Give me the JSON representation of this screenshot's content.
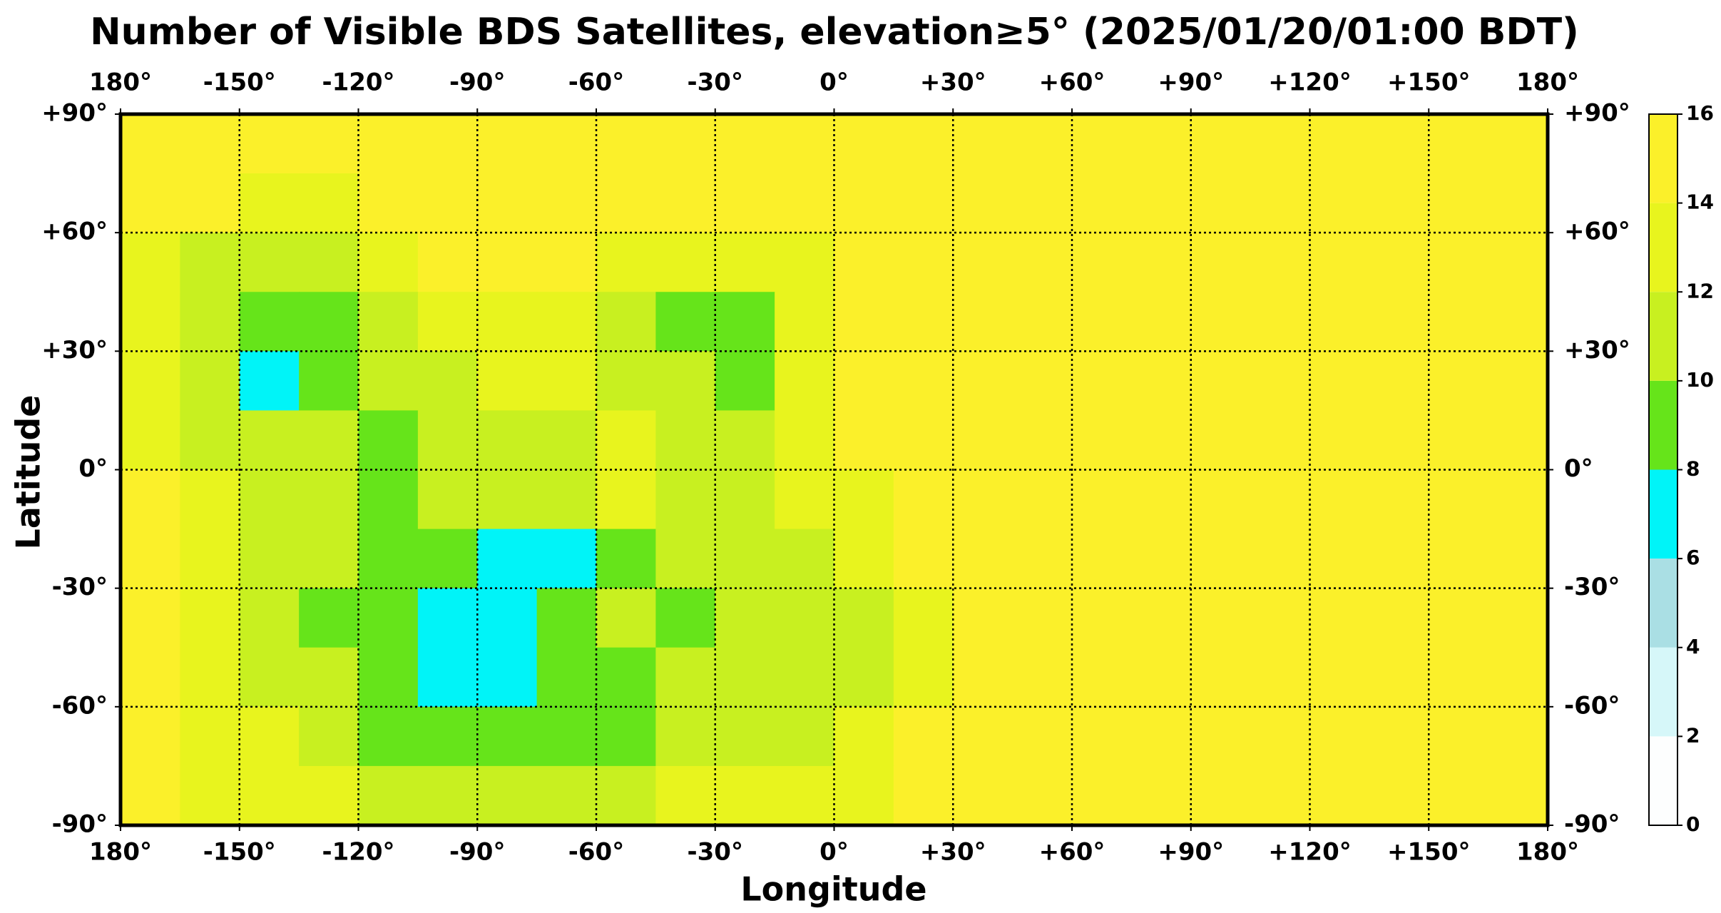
{
  "chart_data": {
    "type": "heatmap",
    "title": "Number of Visible BDS Satellites, elevation≥5° (2025/01/20/01:00 BDT)",
    "xlabel": "Longitude",
    "ylabel": "Latitude",
    "xlim": [
      -180,
      180
    ],
    "ylim": [
      -90,
      90
    ],
    "xticks": [
      {
        "value": -180,
        "label": "180°"
      },
      {
        "value": -150,
        "label": "-150°"
      },
      {
        "value": -120,
        "label": "-120°"
      },
      {
        "value": -90,
        "label": "-90°"
      },
      {
        "value": -60,
        "label": "-60°"
      },
      {
        "value": -30,
        "label": "-30°"
      },
      {
        "value": 0,
        "label": "0°"
      },
      {
        "value": 30,
        "label": "+30°"
      },
      {
        "value": 60,
        "label": "+60°"
      },
      {
        "value": 90,
        "label": "+90°"
      },
      {
        "value": 120,
        "label": "+120°"
      },
      {
        "value": 150,
        "label": "+150°"
      },
      {
        "value": 180,
        "label": "180°"
      }
    ],
    "yticks": [
      {
        "value": 90,
        "label": "+90°"
      },
      {
        "value": 60,
        "label": "+60°"
      },
      {
        "value": 30,
        "label": "+30°"
      },
      {
        "value": 0,
        "label": "0°"
      },
      {
        "value": -30,
        "label": "-30°"
      },
      {
        "value": -60,
        "label": "-60°"
      },
      {
        "value": -90,
        "label": "-90°"
      }
    ],
    "grid": true,
    "x_edges": [
      -180,
      -165,
      -150,
      -135,
      -120,
      -105,
      -90,
      -75,
      -60,
      -45,
      -30,
      -15,
      0,
      15,
      30,
      45,
      60,
      75,
      90,
      105,
      120,
      135,
      150,
      165,
      180
    ],
    "y_edges": [
      90,
      75,
      60,
      45,
      30,
      15,
      0,
      -15,
      -30,
      -45,
      -60,
      -75,
      -90
    ],
    "values": [
      [
        15,
        15,
        15,
        15,
        15,
        15,
        15,
        15,
        15,
        15,
        15,
        15,
        15,
        15,
        15,
        15,
        15,
        15,
        15,
        15,
        15,
        15,
        15,
        15
      ],
      [
        15,
        15,
        13,
        13,
        15,
        15,
        15,
        15,
        15,
        15,
        15,
        15,
        15,
        15,
        15,
        15,
        15,
        15,
        15,
        15,
        15,
        15,
        15,
        15
      ],
      [
        13,
        11,
        11,
        11,
        13,
        15,
        15,
        15,
        13,
        13,
        13,
        13,
        15,
        15,
        15,
        15,
        15,
        15,
        15,
        15,
        15,
        15,
        15,
        15
      ],
      [
        13,
        11,
        9,
        9,
        11,
        13,
        13,
        13,
        11,
        9,
        9,
        13,
        15,
        15,
        15,
        15,
        15,
        15,
        15,
        15,
        15,
        15,
        15,
        15
      ],
      [
        13,
        11,
        7,
        9,
        11,
        11,
        13,
        13,
        11,
        11,
        9,
        13,
        15,
        15,
        15,
        15,
        15,
        15,
        15,
        15,
        15,
        15,
        15,
        15
      ],
      [
        13,
        11,
        11,
        11,
        9,
        11,
        11,
        11,
        13,
        11,
        11,
        13,
        15,
        15,
        15,
        15,
        15,
        15,
        15,
        15,
        15,
        15,
        15,
        15
      ],
      [
        15,
        13,
        11,
        11,
        9,
        11,
        11,
        11,
        13,
        11,
        11,
        13,
        13,
        15,
        15,
        15,
        15,
        15,
        15,
        15,
        15,
        15,
        15,
        15
      ],
      [
        15,
        13,
        11,
        11,
        9,
        9,
        7,
        7,
        9,
        11,
        11,
        11,
        13,
        15,
        15,
        15,
        15,
        15,
        15,
        15,
        15,
        15,
        15,
        15
      ],
      [
        15,
        13,
        11,
        9,
        9,
        7,
        7,
        9,
        11,
        9,
        11,
        11,
        11,
        13,
        15,
        15,
        15,
        15,
        15,
        15,
        15,
        15,
        15,
        15
      ],
      [
        15,
        13,
        11,
        11,
        9,
        7,
        7,
        9,
        9,
        11,
        11,
        11,
        11,
        13,
        15,
        15,
        15,
        15,
        15,
        15,
        15,
        15,
        15,
        15
      ],
      [
        15,
        13,
        13,
        11,
        9,
        9,
        9,
        9,
        9,
        11,
        11,
        11,
        13,
        15,
        15,
        15,
        15,
        15,
        15,
        15,
        15,
        15,
        15,
        15
      ],
      [
        15,
        13,
        13,
        13,
        11,
        11,
        11,
        11,
        11,
        13,
        13,
        13,
        13,
        15,
        15,
        15,
        15,
        15,
        15,
        15,
        15,
        15,
        15,
        15
      ]
    ],
    "colorbar": {
      "ticks": [
        0,
        2,
        4,
        6,
        8,
        10,
        12,
        14,
        16
      ],
      "colors": [
        "#fdfefe",
        "#d6f7f9",
        "#aadfe4",
        "#00f4f8",
        "#66e41a",
        "#c8f020",
        "#e8f41e",
        "#fbf02a"
      ]
    }
  }
}
